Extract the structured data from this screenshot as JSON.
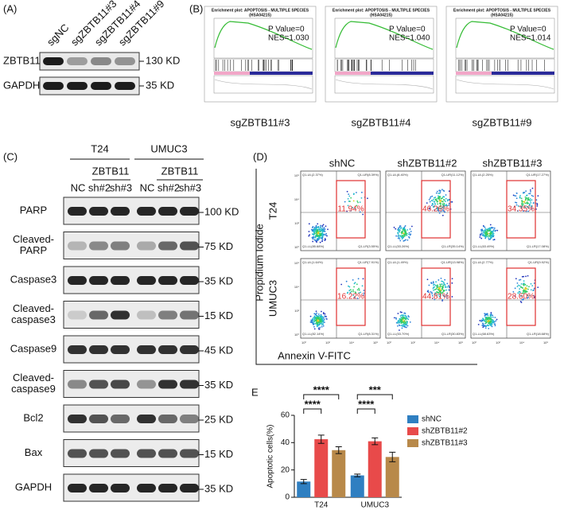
{
  "figure": {
    "A": {
      "label": "(A)",
      "lanes": [
        "sgNC",
        "sgZBTB11#3",
        "sgZBTB11#4",
        "sgZBTB11#9"
      ],
      "rows": [
        {
          "name": "ZBTB11",
          "size": "130 KD"
        },
        {
          "name": "GAPDH",
          "size": "35 KD"
        }
      ]
    },
    "B": {
      "label": "(B)",
      "plots": [
        {
          "title": "Enrichment plot: APOPTOSIS - MULTIPLE SPECIES",
          "subtitle": "(HSA04215)",
          "pvalue": "P Value=0",
          "nes": "NES=1.030",
          "caption": "sgZBTB11#3"
        },
        {
          "title": "Enrichment plot: APOPTOSIS - MULTIPLE SPECIES",
          "subtitle": "(HSA04215)",
          "pvalue": "P Value=0",
          "nes": "NES=1.040",
          "caption": "sgZBTB11#4"
        },
        {
          "title": "Enrichment plot: APOPTOSIS - MULTIPLE SPECIES",
          "subtitle": "(HSA04215)",
          "pvalue": "P Value=0",
          "nes": "NES=1.014",
          "caption": "sgZBTB11#9"
        }
      ]
    },
    "C": {
      "label": "(C)",
      "groups": [
        "T24",
        "UMUC3"
      ],
      "subgroup": "ZBTB11",
      "lanes": [
        "NC",
        "sh#2",
        "sh#3",
        "NC",
        "sh#2",
        "sh#3"
      ],
      "rows": [
        {
          "name": [
            "PARP"
          ],
          "size": "100 KD"
        },
        {
          "name": [
            "Cleaved-",
            "PARP"
          ],
          "size": "75 KD"
        },
        {
          "name": [
            "Caspase3"
          ],
          "size": "35 KD"
        },
        {
          "name": [
            "Cleaved-",
            "caspase3"
          ],
          "size": "15 KD"
        },
        {
          "name": [
            "Caspase9"
          ],
          "size": "45 KD"
        },
        {
          "name": [
            "Cleaved-",
            "caspase9"
          ],
          "size": "35 KD"
        },
        {
          "name": [
            "Bcl2"
          ],
          "size": "25 KD"
        },
        {
          "name": [
            "Bax"
          ],
          "size": "15 KD"
        },
        {
          "name": [
            "GAPDH"
          ],
          "size": "35 KD"
        }
      ]
    },
    "D": {
      "label": "(D)",
      "columns": [
        "shNC",
        "shZBTB11#2",
        "shZBTB11#3"
      ],
      "rows": [
        "T24",
        "UMUC3"
      ],
      "ylabel": "Propidium Iodide",
      "xlabel": "Annexin V-FITC",
      "ticks": [
        "10⁰",
        "10²",
        "10⁴",
        "10⁶"
      ],
      "cells": [
        [
          {
            "ul": "Q1-UL(2.37%)",
            "ur": "Q1-UR(8.39%)",
            "ll": "Q1-LL(85.68%)",
            "lr": "Q1-LR(3.55%)",
            "box": "11.94%"
          },
          {
            "ul": "Q1-UL(8.40%)",
            "ur": "Q1-UR(11.12%)",
            "ll": "Q1-LL(53.26%)",
            "lr": "Q1-LR(35.14%)",
            "box": "46.26%"
          },
          {
            "ul": "Q1-UL(2.25%)",
            "ur": "Q1-UR(17.27%)",
            "ll": "Q1-LL(63.49%)",
            "lr": "Q1-LR(17.08%)",
            "box": "34.35%"
          }
        ],
        [
          {
            "ul": "Q1-UL(1.64%)",
            "ur": "Q1-UR(7.91%)",
            "ll": "Q1-LL(82.14%)",
            "lr": "Q1-LR(8.31%)",
            "box": "16.22%"
          },
          {
            "ul": "Q1-UL(1.49%)",
            "ur": "Q1-UR(13.98%)",
            "ll": "Q1-LL(53.70%)",
            "lr": "Q1-LR(30.83%)",
            "box": "44.81%"
          },
          {
            "ul": "Q1-UL(2.77%)",
            "ur": "Q1-UR(9.92%)",
            "ll": "Q1-LL(68.63%)",
            "lr": "Q1-LR(18.68%)",
            "box": "28.60%"
          }
        ]
      ]
    }
  },
  "chart_data": {
    "type": "bar",
    "label": "E",
    "ylabel": "Apoptotic cells(%)",
    "categories": [
      "T24",
      "UMUC3"
    ],
    "series": [
      {
        "name": "shNC",
        "color": "#2f7fc1",
        "values": [
          11.5,
          16
        ],
        "errors": [
          1.5,
          1
        ]
      },
      {
        "name": "shZBTB11#2",
        "color": "#e84a4a",
        "values": [
          42.5,
          41
        ],
        "errors": [
          3,
          2.5
        ]
      },
      {
        "name": "shZBTB11#3",
        "color": "#b8894a",
        "values": [
          34.5,
          29.5
        ],
        "errors": [
          2.5,
          3.5
        ]
      }
    ],
    "significance": [
      [
        "****",
        "****"
      ],
      [
        "****",
        "***"
      ]
    ],
    "ylim": [
      0,
      60
    ],
    "yticks": [
      0,
      20,
      40,
      60
    ],
    "legend": "right"
  }
}
